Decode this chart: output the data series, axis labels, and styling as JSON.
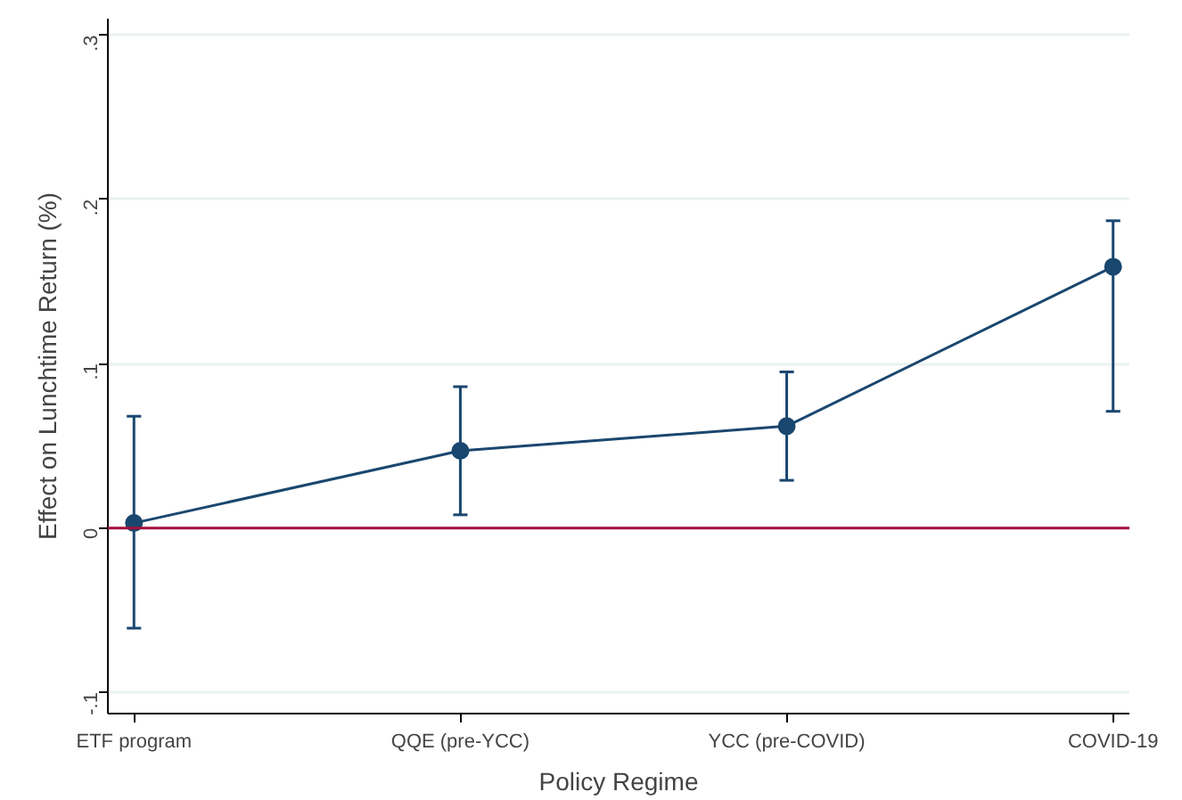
{
  "chart_data": {
    "type": "line",
    "xlabel": "Policy Regime",
    "ylabel": "Effect on Lunchtime Return (%)",
    "categories": [
      "ETF program",
      "QQE (pre-YCC)",
      "YCC (pre-COVID)",
      "COVID-19"
    ],
    "series": [
      {
        "color": "#1a476f",
        "values": [
          0.003,
          0.047,
          0.062,
          0.159
        ],
        "errors": [
          [
            -0.061,
            0.068
          ],
          [
            0.008,
            0.086
          ],
          [
            0.029,
            0.095
          ],
          [
            0.071,
            0.187
          ]
        ]
      }
    ],
    "ylim": [
      -0.113,
      0.31
    ],
    "yticks": [
      {
        "value": -0.1,
        "label": "-.1"
      },
      {
        "value": 0,
        "label": "0"
      },
      {
        "value": 0.1,
        "label": ".1"
      },
      {
        "value": 0.2,
        "label": ".2"
      },
      {
        "value": 0.3,
        "label": ".3"
      }
    ],
    "ref_lines": [
      {
        "axis": "y",
        "value": 0,
        "color": "#a50f3c"
      }
    ],
    "marker": "circle",
    "line_style": "solid",
    "grid": "y"
  }
}
